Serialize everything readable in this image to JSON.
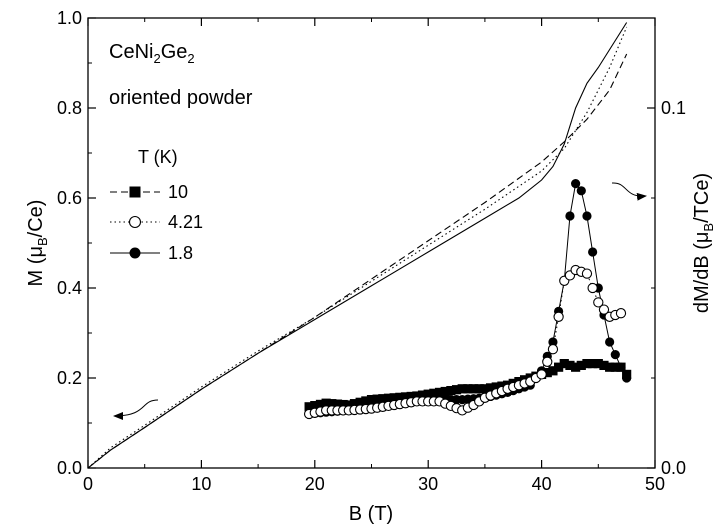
{
  "chart_data": {
    "type": "line",
    "xlabel": "B (T)",
    "ylabel_left_parts": [
      "M (",
      "μ",
      "B",
      "/Ce)"
    ],
    "ylabel_right_parts": [
      "dM/dB (",
      "μ",
      "B",
      "/TCe)"
    ],
    "xlim": [
      0,
      50
    ],
    "ylim_left": [
      0,
      1.0
    ],
    "ylim_right": [
      0,
      0.125
    ],
    "x_ticks": [
      "0",
      "10",
      "20",
      "30",
      "40",
      "50"
    ],
    "y_ticks_left": [
      "0.0",
      "0.2",
      "0.4",
      "0.6",
      "0.8",
      "1.0"
    ],
    "y_ticks_right": [
      "0.0",
      "0.1"
    ],
    "y_ticks_right_values": [
      0,
      0.1
    ],
    "annotation_parts": [
      "CeNi",
      "2",
      "Ge",
      "2"
    ],
    "annotation_line2": "oriented powder",
    "legend_title": "T (K)",
    "legend_position": "left-middle",
    "grid": false,
    "series": [
      {
        "name": "10",
        "marker": "filled-square",
        "line_style": "dashed",
        "magnetization": {
          "x": [
            0,
            2,
            5,
            10,
            15,
            20,
            25,
            30,
            35,
            40,
            42,
            44,
            46,
            47.5
          ],
          "y": [
            0,
            0.04,
            0.09,
            0.175,
            0.255,
            0.335,
            0.42,
            0.505,
            0.59,
            0.68,
            0.725,
            0.775,
            0.84,
            0.92
          ]
        },
        "dM_dB": {
          "x": [
            19.5,
            21,
            23,
            25,
            27,
            29,
            31,
            33,
            35,
            37,
            39,
            40,
            41,
            42,
            43,
            44,
            45,
            46,
            47,
            47.5
          ],
          "y": [
            0.017,
            0.018,
            0.0175,
            0.019,
            0.0195,
            0.02,
            0.021,
            0.022,
            0.022,
            0.023,
            0.025,
            0.026,
            0.027,
            0.029,
            0.028,
            0.029,
            0.029,
            0.028,
            0.028,
            0.026
          ]
        }
      },
      {
        "name": "4.21",
        "marker": "open-circle",
        "line_style": "dotted",
        "magnetization": {
          "x": [
            0,
            2,
            5,
            10,
            15,
            20,
            25,
            30,
            35,
            40,
            42,
            43,
            44,
            45,
            46,
            47,
            47.5
          ],
          "y": [
            0,
            0.045,
            0.095,
            0.18,
            0.26,
            0.335,
            0.415,
            0.495,
            0.575,
            0.66,
            0.71,
            0.75,
            0.79,
            0.84,
            0.89,
            0.95,
            0.98
          ]
        },
        "dM_dB": {
          "x": [
            19.5,
            21,
            23,
            25,
            27,
            29,
            31,
            33,
            34,
            35,
            37,
            39,
            40,
            41,
            41.5,
            42,
            43,
            44,
            45,
            46,
            47
          ],
          "y": [
            0.015,
            0.016,
            0.016,
            0.0165,
            0.0175,
            0.0185,
            0.0185,
            0.016,
            0.0175,
            0.0195,
            0.022,
            0.024,
            0.026,
            0.033,
            0.042,
            0.052,
            0.055,
            0.054,
            0.046,
            0.042,
            0.043
          ]
        }
      },
      {
        "name": "1.8",
        "marker": "filled-circle",
        "line_style": "solid",
        "magnetization": {
          "x": [
            0,
            2,
            5,
            10,
            15,
            20,
            25,
            30,
            35,
            38,
            40,
            41,
            42,
            43,
            44,
            45,
            46,
            47,
            47.5
          ],
          "y": [
            0,
            0.04,
            0.09,
            0.175,
            0.255,
            0.33,
            0.405,
            0.48,
            0.555,
            0.6,
            0.64,
            0.67,
            0.72,
            0.8,
            0.855,
            0.89,
            0.93,
            0.97,
            0.99
          ]
        },
        "dM_dB": {
          "x": [
            19.5,
            21,
            23,
            25,
            27,
            29,
            31,
            33,
            35,
            37,
            39,
            40,
            41,
            42,
            42.5,
            43,
            43.5,
            44,
            44.5,
            45,
            46,
            47,
            47.5
          ],
          "y": [
            0.015,
            0.0155,
            0.016,
            0.0165,
            0.0175,
            0.0185,
            0.019,
            0.019,
            0.0195,
            0.021,
            0.023,
            0.027,
            0.035,
            0.052,
            0.07,
            0.079,
            0.077,
            0.07,
            0.06,
            0.05,
            0.035,
            0.028,
            0.025
          ]
        }
      }
    ]
  }
}
